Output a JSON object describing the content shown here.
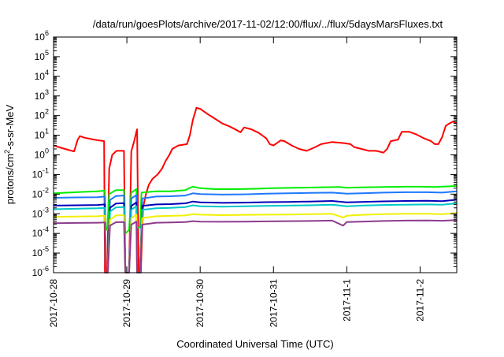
{
  "chart_data": {
    "type": "line",
    "title": "/data/run/goesPlots/archive/2017-11-02/12:00/flux/../flux/5daysMarsFluxes.txt",
    "xlabel": "Coordinated Universal Time (UTC)",
    "ylabel": "protons/cm²-s-sr-MeV",
    "ylabel_parts": {
      "base": "protons/cm",
      "sup": "2",
      "rest": "-s-sr-MeV"
    },
    "x_start": "2017-10-28",
    "x_end_days": 5.5,
    "x_ticks": [
      "2017-10-28",
      "2017-10-29",
      "2017-10-30",
      "2017-10-31",
      "2017-11-1",
      "2017-11-2"
    ],
    "y_scale": "log",
    "ylim_exp": [
      -6,
      6
    ],
    "y_tick_base": "10",
    "y_tick_exponents": [
      "-6",
      "-5",
      "-4",
      "-3",
      "-2",
      "-1",
      "0",
      "1",
      "2",
      "3",
      "4",
      "5",
      "6"
    ],
    "grid": false,
    "legend": "none",
    "series": [
      {
        "color": "#ff0000",
        "points": [
          [
            0,
            3.0
          ],
          [
            0.1,
            2.3
          ],
          [
            0.2,
            1.8
          ],
          [
            0.28,
            1.5
          ],
          [
            0.33,
            6
          ],
          [
            0.36,
            9
          ],
          [
            0.42,
            7.5
          ],
          [
            0.55,
            6
          ],
          [
            0.69,
            5
          ],
          [
            0.7,
            1e-06
          ],
          [
            0.73,
            1e-06
          ],
          [
            0.76,
            0.2
          ],
          [
            0.8,
            1
          ],
          [
            0.86,
            1.6
          ],
          [
            0.96,
            1.6
          ],
          [
            0.98,
            1e-06
          ],
          [
            1.03,
            1e-06
          ],
          [
            1.06,
            1.5
          ],
          [
            1.1,
            5
          ],
          [
            1.13,
            15
          ],
          [
            1.14,
            20
          ],
          [
            1.16,
            1e-06
          ],
          [
            1.19,
            1e-06
          ],
          [
            1.22,
            0.002
          ],
          [
            1.26,
            0.01
          ],
          [
            1.3,
            0.03
          ],
          [
            1.35,
            0.06
          ],
          [
            1.42,
            0.1
          ],
          [
            1.48,
            0.2
          ],
          [
            1.53,
            0.5
          ],
          [
            1.58,
            1.0
          ],
          [
            1.62,
            2
          ],
          [
            1.7,
            3
          ],
          [
            1.82,
            3.5
          ],
          [
            1.86,
            10
          ],
          [
            1.9,
            60
          ],
          [
            1.95,
            250
          ],
          [
            2.0,
            220
          ],
          [
            2.1,
            120
          ],
          [
            2.2,
            70
          ],
          [
            2.3,
            40
          ],
          [
            2.4,
            28
          ],
          [
            2.5,
            18
          ],
          [
            2.55,
            14
          ],
          [
            2.6,
            25
          ],
          [
            2.7,
            20
          ],
          [
            2.8,
            13
          ],
          [
            2.9,
            7
          ],
          [
            2.95,
            3.5
          ],
          [
            3.0,
            3.0
          ],
          [
            3.1,
            5.5
          ],
          [
            3.15,
            5
          ],
          [
            3.25,
            3
          ],
          [
            3.35,
            2.0
          ],
          [
            3.45,
            1.6
          ],
          [
            3.55,
            2.3
          ],
          [
            3.65,
            3.5
          ],
          [
            3.8,
            4.5
          ],
          [
            3.95,
            4
          ],
          [
            4.05,
            3.5
          ],
          [
            4.1,
            2.5
          ],
          [
            4.2,
            2
          ],
          [
            4.3,
            1.6
          ],
          [
            4.4,
            1.6
          ],
          [
            4.5,
            1.3
          ],
          [
            4.55,
            2
          ],
          [
            4.6,
            5
          ],
          [
            4.7,
            6
          ],
          [
            4.75,
            15
          ],
          [
            4.85,
            15
          ],
          [
            4.95,
            11
          ],
          [
            5.05,
            7
          ],
          [
            5.15,
            5
          ],
          [
            5.2,
            3.5
          ],
          [
            5.25,
            3.5
          ],
          [
            5.3,
            8
          ],
          [
            5.35,
            30
          ],
          [
            5.4,
            40
          ],
          [
            5.45,
            50
          ],
          [
            5.5,
            40
          ]
        ]
      },
      {
        "color": "#00ee00",
        "points": [
          [
            0,
            0.011
          ],
          [
            0.2,
            0.012
          ],
          [
            0.4,
            0.013
          ],
          [
            0.6,
            0.014
          ],
          [
            0.7,
            0.015
          ],
          [
            0.71,
            0.0002
          ],
          [
            0.73,
            0.00015
          ],
          [
            0.76,
            0.01
          ],
          [
            0.85,
            0.016
          ],
          [
            0.96,
            0.016
          ],
          [
            0.98,
            0.0001
          ],
          [
            1.03,
            0.00015
          ],
          [
            1.06,
            0.012
          ],
          [
            1.13,
            0.018
          ],
          [
            1.14,
            0.0002
          ],
          [
            1.18,
            0.0002
          ],
          [
            1.2,
            0.012
          ],
          [
            1.4,
            0.014
          ],
          [
            1.6,
            0.014
          ],
          [
            1.8,
            0.016
          ],
          [
            1.85,
            0.02
          ],
          [
            1.9,
            0.024
          ],
          [
            2.0,
            0.02
          ],
          [
            2.2,
            0.018
          ],
          [
            2.5,
            0.018
          ],
          [
            2.8,
            0.019
          ],
          [
            3.0,
            0.02
          ],
          [
            3.3,
            0.021
          ],
          [
            3.6,
            0.022
          ],
          [
            3.9,
            0.023
          ],
          [
            4.0,
            0.021
          ],
          [
            4.2,
            0.022
          ],
          [
            4.5,
            0.023
          ],
          [
            4.8,
            0.024
          ],
          [
            5.0,
            0.024
          ],
          [
            5.2,
            0.023
          ],
          [
            5.5,
            0.026
          ]
        ]
      },
      {
        "color": "#1e78ff",
        "points": [
          [
            0,
            0.0065
          ],
          [
            0.3,
            0.0068
          ],
          [
            0.6,
            0.007
          ],
          [
            0.7,
            0.0075
          ],
          [
            0.71,
            1e-06
          ],
          [
            0.74,
            1e-06
          ],
          [
            0.77,
            0.005
          ],
          [
            0.85,
            0.008
          ],
          [
            0.96,
            0.0085
          ],
          [
            0.98,
            1e-06
          ],
          [
            1.03,
            1e-06
          ],
          [
            1.06,
            0.006
          ],
          [
            1.13,
            0.009
          ],
          [
            1.14,
            1e-06
          ],
          [
            1.18,
            1e-06
          ],
          [
            1.21,
            0.006
          ],
          [
            1.4,
            0.0075
          ],
          [
            1.6,
            0.0078
          ],
          [
            1.8,
            0.0085
          ],
          [
            1.9,
            0.011
          ],
          [
            2.0,
            0.01
          ],
          [
            2.3,
            0.0095
          ],
          [
            2.6,
            0.0098
          ],
          [
            2.9,
            0.0105
          ],
          [
            3.2,
            0.011
          ],
          [
            3.5,
            0.0115
          ],
          [
            3.8,
            0.012
          ],
          [
            4.0,
            0.0105
          ],
          [
            4.2,
            0.011
          ],
          [
            4.5,
            0.012
          ],
          [
            4.8,
            0.0125
          ],
          [
            5.1,
            0.0125
          ],
          [
            5.3,
            0.012
          ],
          [
            5.5,
            0.014
          ]
        ]
      },
      {
        "color": "#0000bb",
        "points": [
          [
            0,
            0.0026
          ],
          [
            0.3,
            0.0027
          ],
          [
            0.6,
            0.0028
          ],
          [
            0.7,
            0.003
          ],
          [
            0.71,
            1e-06
          ],
          [
            0.74,
            1e-06
          ],
          [
            0.77,
            0.002
          ],
          [
            0.85,
            0.0033
          ],
          [
            0.96,
            0.0035
          ],
          [
            0.98,
            1e-06
          ],
          [
            1.03,
            1e-06
          ],
          [
            1.06,
            0.0025
          ],
          [
            1.13,
            0.0038
          ],
          [
            1.14,
            1e-06
          ],
          [
            1.18,
            1e-06
          ],
          [
            1.21,
            0.0025
          ],
          [
            1.4,
            0.003
          ],
          [
            1.6,
            0.0031
          ],
          [
            1.8,
            0.0034
          ],
          [
            1.9,
            0.0042
          ],
          [
            2.0,
            0.0038
          ],
          [
            2.3,
            0.0036
          ],
          [
            2.6,
            0.0037
          ],
          [
            2.9,
            0.0039
          ],
          [
            3.2,
            0.004
          ],
          [
            3.5,
            0.0042
          ],
          [
            3.8,
            0.0045
          ],
          [
            4.0,
            0.0038
          ],
          [
            4.2,
            0.004
          ],
          [
            4.5,
            0.0043
          ],
          [
            4.8,
            0.0045
          ],
          [
            5.1,
            0.0046
          ],
          [
            5.3,
            0.0044
          ],
          [
            5.5,
            0.0052
          ]
        ]
      },
      {
        "color": "#00c8c8",
        "points": [
          [
            0,
            0.0017
          ],
          [
            0.3,
            0.0018
          ],
          [
            0.6,
            0.0019
          ],
          [
            0.7,
            0.002
          ],
          [
            0.71,
            1e-06
          ],
          [
            0.74,
            1e-06
          ],
          [
            0.77,
            0.0013
          ],
          [
            0.85,
            0.0021
          ],
          [
            0.96,
            0.0022
          ],
          [
            0.98,
            1e-06
          ],
          [
            1.03,
            1e-06
          ],
          [
            1.06,
            0.0016
          ],
          [
            1.13,
            0.0024
          ],
          [
            1.14,
            1e-06
          ],
          [
            1.18,
            1e-06
          ],
          [
            1.21,
            0.0016
          ],
          [
            1.4,
            0.0019
          ],
          [
            1.6,
            0.002
          ],
          [
            1.8,
            0.0022
          ],
          [
            1.9,
            0.0027
          ],
          [
            2.0,
            0.0024
          ],
          [
            2.3,
            0.0023
          ],
          [
            2.6,
            0.0024
          ],
          [
            2.9,
            0.0025
          ],
          [
            3.2,
            0.0026
          ],
          [
            3.5,
            0.0027
          ],
          [
            3.8,
            0.0029
          ],
          [
            4.0,
            0.0024
          ],
          [
            4.2,
            0.0026
          ],
          [
            4.5,
            0.0028
          ],
          [
            4.8,
            0.0029
          ],
          [
            5.1,
            0.003
          ],
          [
            5.3,
            0.0029
          ],
          [
            5.5,
            0.0034
          ]
        ]
      },
      {
        "color": "#f0f000",
        "points": [
          [
            0,
            0.0007
          ],
          [
            0.3,
            0.00072
          ],
          [
            0.6,
            0.00075
          ],
          [
            0.7,
            0.0008
          ],
          [
            0.71,
            1e-06
          ],
          [
            0.74,
            1e-06
          ],
          [
            0.77,
            0.0005
          ],
          [
            0.85,
            0.00082
          ],
          [
            0.96,
            0.00085
          ],
          [
            0.98,
            1e-06
          ],
          [
            1.03,
            1e-06
          ],
          [
            1.06,
            0.0006
          ],
          [
            1.13,
            0.0009
          ],
          [
            1.14,
            1e-06
          ],
          [
            1.18,
            1e-06
          ],
          [
            1.21,
            0.0006
          ],
          [
            1.4,
            0.00075
          ],
          [
            1.6,
            0.00078
          ],
          [
            1.8,
            0.00082
          ],
          [
            1.9,
            0.00095
          ],
          [
            2.0,
            0.0009
          ],
          [
            2.3,
            0.00085
          ],
          [
            2.6,
            0.00088
          ],
          [
            2.9,
            0.0009
          ],
          [
            3.2,
            0.00092
          ],
          [
            3.5,
            0.00095
          ],
          [
            3.8,
            0.001
          ],
          [
            3.95,
            0.00065
          ],
          [
            4.0,
            0.0008
          ],
          [
            4.2,
            0.00088
          ],
          [
            4.5,
            0.00095
          ],
          [
            4.8,
            0.001
          ],
          [
            5.1,
            0.001
          ],
          [
            5.3,
            0.00095
          ],
          [
            5.5,
            0.0011
          ]
        ]
      },
      {
        "color": "#8c3c8c",
        "points": [
          [
            0,
            0.00033
          ],
          [
            0.3,
            0.00034
          ],
          [
            0.6,
            0.00035
          ],
          [
            0.7,
            0.00036
          ],
          [
            0.71,
            1e-06
          ],
          [
            0.74,
            1e-06
          ],
          [
            0.77,
            0.00025
          ],
          [
            0.85,
            0.00037
          ],
          [
            0.96,
            0.00038
          ],
          [
            0.98,
            1e-06
          ],
          [
            1.03,
            1e-06
          ],
          [
            1.06,
            0.00028
          ],
          [
            1.13,
            0.0004
          ],
          [
            1.14,
            1e-06
          ],
          [
            1.18,
            1e-06
          ],
          [
            1.21,
            0.00028
          ],
          [
            1.4,
            0.00035
          ],
          [
            1.6,
            0.00036
          ],
          [
            1.8,
            0.00038
          ],
          [
            1.9,
            0.00042
          ],
          [
            2.0,
            0.0004
          ],
          [
            2.3,
            0.00039
          ],
          [
            2.6,
            0.0004
          ],
          [
            2.9,
            0.00041
          ],
          [
            3.2,
            0.00042
          ],
          [
            3.5,
            0.00043
          ],
          [
            3.8,
            0.00045
          ],
          [
            3.95,
            0.00025
          ],
          [
            4.0,
            0.00038
          ],
          [
            4.2,
            0.0004
          ],
          [
            4.5,
            0.00043
          ],
          [
            4.8,
            0.00045
          ],
          [
            5.1,
            0.00046
          ],
          [
            5.3,
            0.00044
          ],
          [
            5.5,
            0.00048
          ]
        ]
      }
    ]
  }
}
